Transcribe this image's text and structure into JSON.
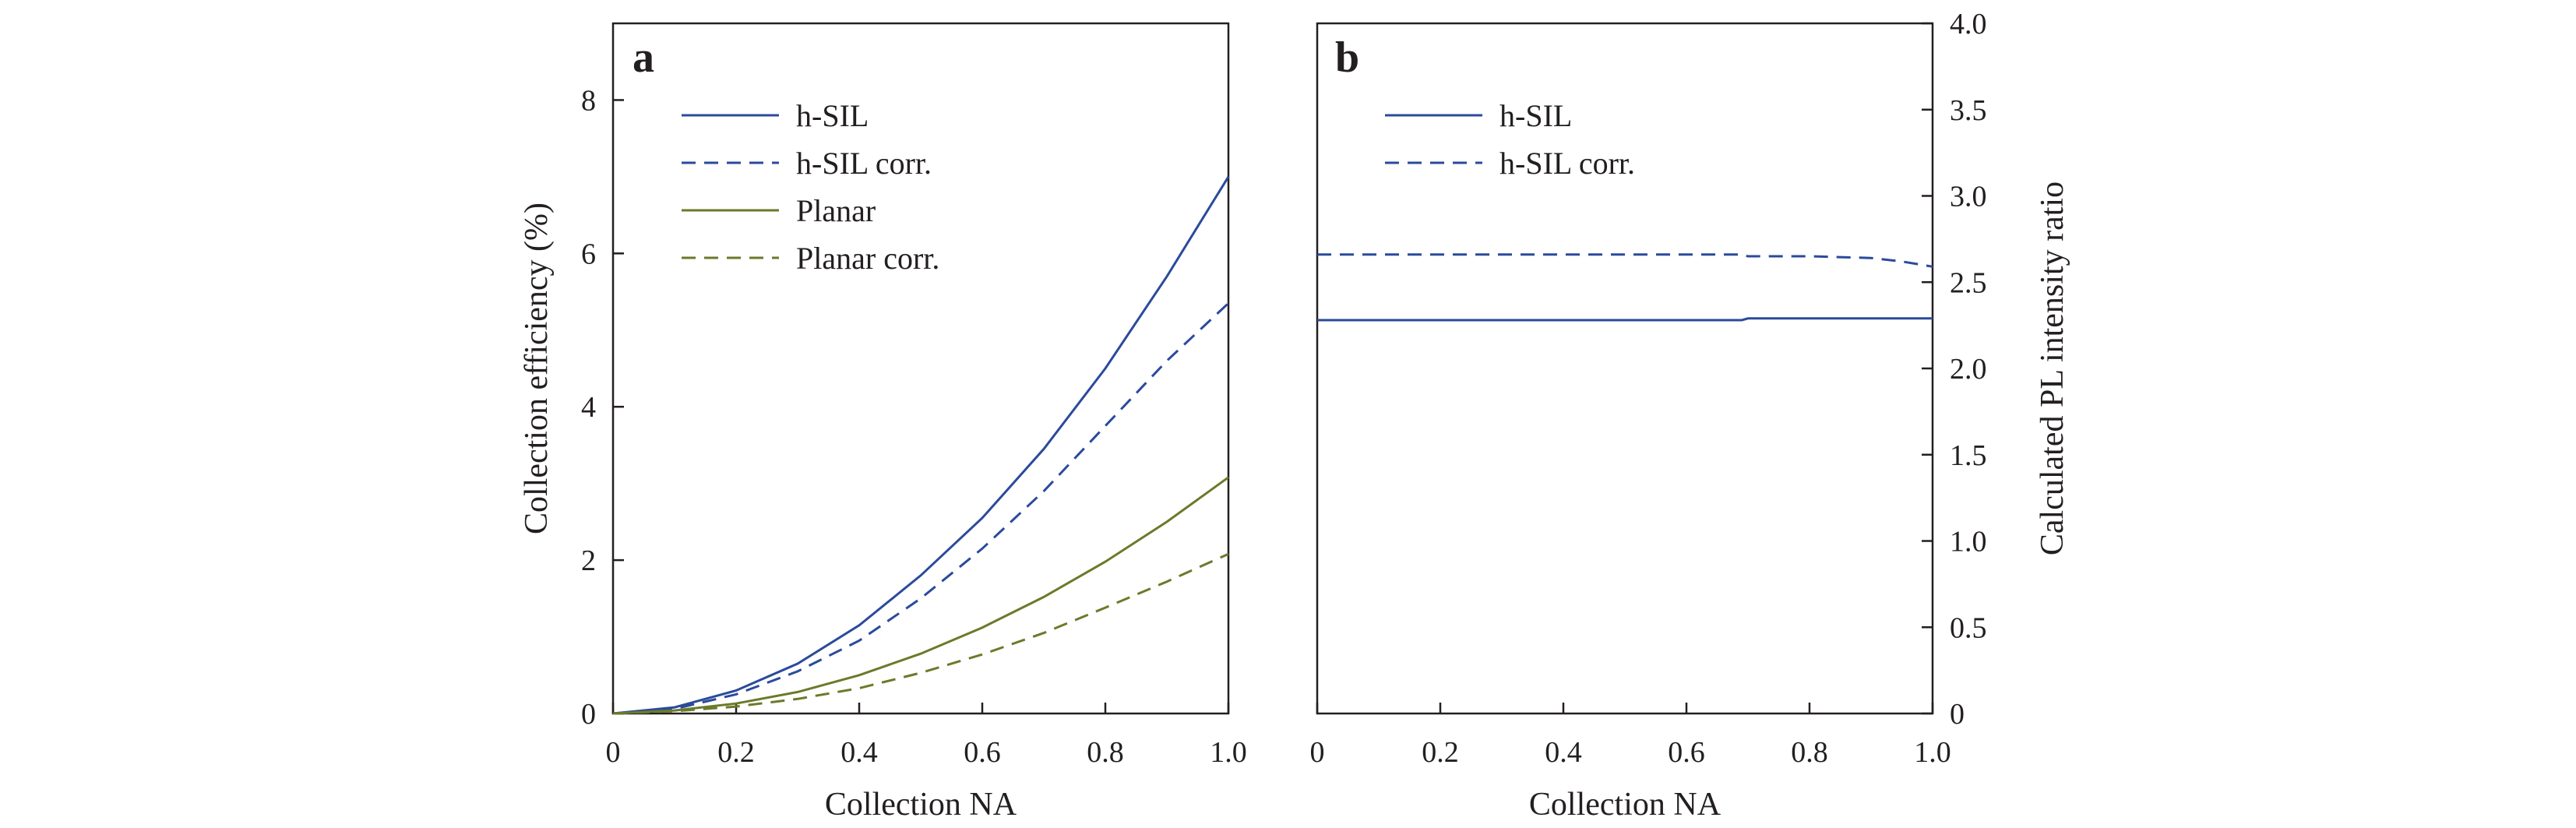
{
  "colors": {
    "h_sil": "#2b4a9b",
    "planar": "#6b7a2a",
    "axis": "#231f20"
  },
  "chart_data": [
    {
      "type": "line",
      "panel": "a",
      "xlabel": "Collection NA",
      "ylabel": "Collection efficiency (%)",
      "xlim": [
        0,
        1.0
      ],
      "ylim": [
        0,
        9
      ],
      "xticks": [
        "0",
        "0.2",
        "0.4",
        "0.6",
        "0.8",
        "1.0"
      ],
      "yticks": [
        "0",
        "2",
        "4",
        "6",
        "8"
      ],
      "legend_position": "top-left",
      "grid": false,
      "series": [
        {
          "name": "h-SIL",
          "style": "solid",
          "color": "h_sil",
          "x": [
            0,
            0.1,
            0.2,
            0.3,
            0.4,
            0.5,
            0.6,
            0.7,
            0.8,
            0.9,
            1.0
          ],
          "y": [
            0,
            0.08,
            0.3,
            0.65,
            1.15,
            1.8,
            2.55,
            3.45,
            4.5,
            5.7,
            7.0
          ]
        },
        {
          "name": "h-SIL corr.",
          "style": "dashed",
          "color": "h_sil",
          "x": [
            0,
            0.1,
            0.2,
            0.3,
            0.4,
            0.5,
            0.6,
            0.7,
            0.8,
            0.9,
            1.0
          ],
          "y": [
            0,
            0.06,
            0.25,
            0.55,
            0.95,
            1.5,
            2.15,
            2.9,
            3.75,
            4.6,
            5.35
          ]
        },
        {
          "name": "Planar",
          "style": "solid",
          "color": "planar",
          "x": [
            0,
            0.1,
            0.2,
            0.3,
            0.4,
            0.5,
            0.6,
            0.7,
            0.8,
            0.9,
            1.0
          ],
          "y": [
            0,
            0.04,
            0.13,
            0.28,
            0.5,
            0.78,
            1.12,
            1.52,
            1.98,
            2.5,
            3.08
          ]
        },
        {
          "name": "Planar corr.",
          "style": "dashed",
          "color": "planar",
          "x": [
            0,
            0.1,
            0.2,
            0.3,
            0.4,
            0.5,
            0.6,
            0.7,
            0.8,
            0.9,
            1.0
          ],
          "y": [
            0,
            0.03,
            0.09,
            0.19,
            0.33,
            0.53,
            0.77,
            1.05,
            1.38,
            1.72,
            2.08
          ]
        }
      ]
    },
    {
      "type": "line",
      "panel": "b",
      "xlabel": "Collection NA",
      "ylabel": "Calculated PL intensity ratio",
      "xlim": [
        0,
        1.0
      ],
      "ylim": [
        0,
        4.0
      ],
      "xticks": [
        "0",
        "0.2",
        "0.4",
        "0.6",
        "0.8",
        "1.0"
      ],
      "yticks": [
        "0",
        "0.5",
        "1.0",
        "1.5",
        "2.0",
        "2.5",
        "3.0",
        "3.5",
        "4.0"
      ],
      "y_axis_side": "right",
      "legend_position": "top-left",
      "grid": false,
      "series": [
        {
          "name": "h-SIL",
          "style": "solid",
          "color": "h_sil",
          "x": [
            0,
            0.2,
            0.4,
            0.6,
            0.69,
            0.7,
            0.8,
            0.9,
            1.0
          ],
          "y": [
            2.28,
            2.28,
            2.28,
            2.28,
            2.28,
            2.29,
            2.29,
            2.29,
            2.29
          ]
        },
        {
          "name": "h-SIL corr.",
          "style": "dashed",
          "color": "h_sil",
          "x": [
            0,
            0.2,
            0.4,
            0.6,
            0.69,
            0.7,
            0.8,
            0.9,
            0.95,
            1.0
          ],
          "y": [
            2.66,
            2.66,
            2.66,
            2.66,
            2.66,
            2.65,
            2.65,
            2.64,
            2.62,
            2.59
          ]
        }
      ]
    }
  ]
}
